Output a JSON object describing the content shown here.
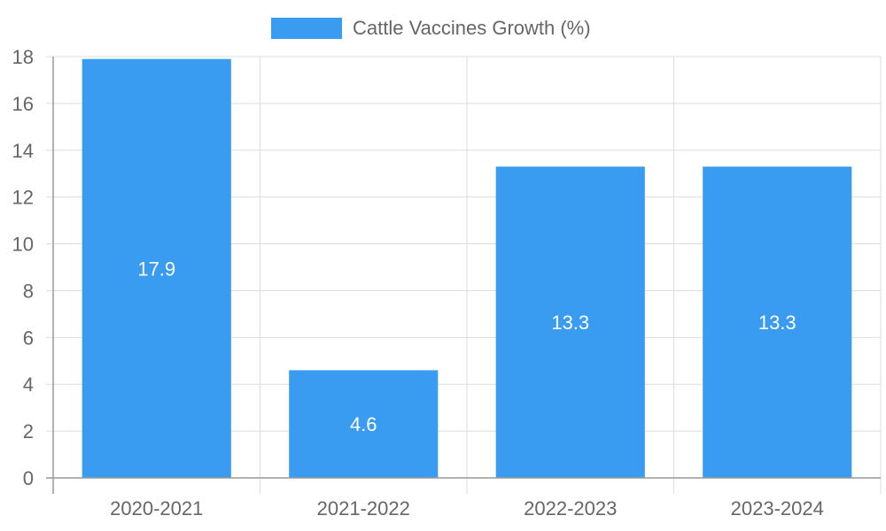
{
  "chart_data": {
    "type": "bar",
    "categories": [
      "2020-2021",
      "2021-2022",
      "2022-2023",
      "2023-2024"
    ],
    "series": [
      {
        "name": "Cattle Vaccines Growth (%)",
        "values": [
          17.9,
          4.6,
          13.3,
          13.3
        ],
        "color": "#399cf0"
      }
    ],
    "title": "",
    "xlabel": "",
    "ylabel": "",
    "ylim": [
      0,
      18
    ],
    "yticks": [
      0,
      2,
      4,
      6,
      8,
      10,
      12,
      14,
      16,
      18
    ],
    "grid": true,
    "legend_position": "top",
    "data_labels": true
  },
  "colors": {
    "grid": "#dddddd",
    "axis": "#999999",
    "text": "#666666",
    "label_text": "#ffffff"
  }
}
